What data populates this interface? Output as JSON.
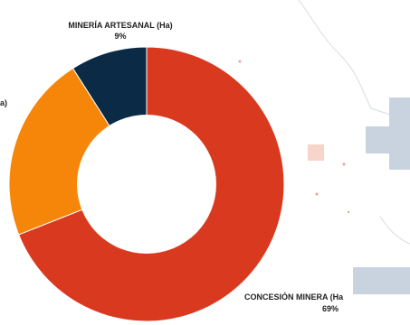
{
  "chart_data": {
    "type": "pie",
    "donut": true,
    "slices": [
      {
        "label": "CONCESIÓN MINERA (Ha",
        "percent": 69,
        "color": "#d93a1f"
      },
      {
        "label": "",
        "percent": 22,
        "color": "#f5860a"
      },
      {
        "label": "MINERÍA ARTESANAL (Ha)",
        "percent": 9,
        "color": "#0b2a45"
      }
    ],
    "labels": {
      "artesanal_name": "MINERÍA ARTESANAL (Ha)",
      "artesanal_pct": "9%",
      "concesion_name": "CONCESIÓN MINERA (Ha",
      "concesion_pct": "69%",
      "cut_label_fragment": "a)"
    }
  },
  "background": {
    "map_patch_color": "#c9d3e0",
    "map_outline_color": "#b9c3cf",
    "accent_dot_color": "#f2b9a6"
  }
}
